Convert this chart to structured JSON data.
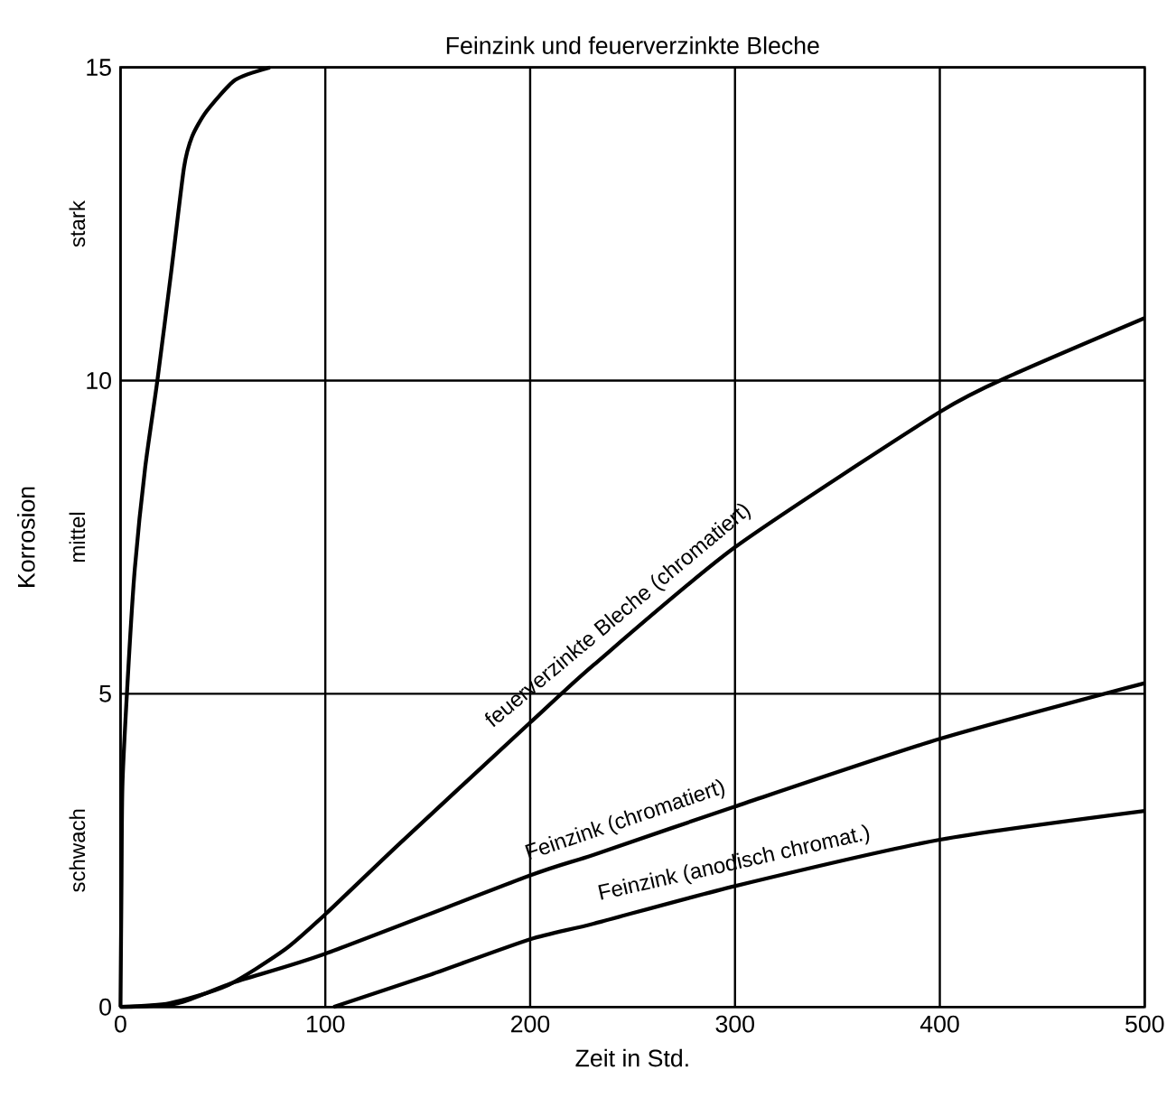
{
  "chart_data": {
    "type": "line",
    "title": "Feinzink und feuerverzinkte Bleche",
    "xlabel": "Zeit in Std.",
    "ylabel": "Korrosion",
    "annotations": [
      "schwach",
      "mittel",
      "stark"
    ],
    "xlim": [
      0,
      500
    ],
    "ylim": [
      0,
      15
    ],
    "xticks": [
      0,
      100,
      200,
      300,
      400,
      500
    ],
    "yticks": [
      0,
      5,
      10,
      15
    ],
    "grid": true,
    "legend": false,
    "marker": "none",
    "line_style": "solid",
    "series": [
      {
        "color": "#000000",
        "x": [
          0,
          0.5,
          1,
          4,
          7,
          12,
          18,
          25,
          31,
          35,
          42,
          56,
          73
        ],
        "values": [
          0,
          2,
          3.6,
          5.5,
          7,
          8.6,
          10,
          11.8,
          13.4,
          13.9,
          14.3,
          14.8,
          15
        ]
      },
      {
        "name": "feuerverzinkte Bleche (chromatiert)",
        "color": "#000000",
        "x": [
          0,
          24,
          52,
          80,
          100,
          136,
          200,
          231,
          300,
          400,
          436,
          500
        ],
        "values": [
          0,
          0.06,
          0.34,
          0.91,
          1.48,
          2.6,
          4.54,
          5.46,
          7.34,
          9.5,
          10.1,
          11
        ]
      },
      {
        "name": "Feinzink (chromatiert)",
        "color": "#000000",
        "x": [
          0,
          28,
          56,
          100,
          200,
          231,
          300,
          400,
          500
        ],
        "values": [
          0,
          0.06,
          0.4,
          0.85,
          2.1,
          2.43,
          3.2,
          4.28,
          5.17
        ]
      },
      {
        "name": "Feinzink (anodisch chromat.)",
        "color": "#000000",
        "x": [
          104,
          150,
          200,
          231,
          300,
          400,
          500
        ],
        "values": [
          0,
          0.5,
          1.08,
          1.33,
          1.93,
          2.67,
          3.13
        ]
      }
    ]
  }
}
